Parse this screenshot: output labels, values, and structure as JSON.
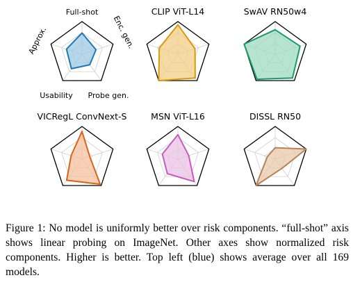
{
  "axis_labels": [
    "Full-shot",
    "Enc. gen.",
    "Probe gen.",
    "Usability",
    "Approx."
  ],
  "chart_data": [
    {
      "type": "radar",
      "title": "",
      "axes": [
        "Full-shot",
        "Enc. gen.",
        "Probe gen.",
        "Usability",
        "Approx."
      ],
      "values": [
        0.65,
        0.45,
        0.4,
        0.55,
        0.5
      ],
      "color": "#1f77b4",
      "fill": "#9ecae1",
      "grid": true
    },
    {
      "type": "radar",
      "title": "CLIP ViT-L14",
      "axes": [
        "Full-shot",
        "Enc. gen.",
        "Probe gen.",
        "Usability",
        "Approx."
      ],
      "values": [
        0.9,
        0.55,
        0.9,
        1.0,
        0.6
      ],
      "color": "#d89a0e",
      "fill": "#f3cd86",
      "grid": true
    },
    {
      "type": "radar",
      "title": "SwAV RN50w4",
      "axes": [
        "Full-shot",
        "Enc. gen.",
        "Probe gen.",
        "Usability",
        "Approx."
      ],
      "values": [
        0.75,
        0.8,
        0.9,
        0.95,
        1.0
      ],
      "color": "#1a9a6b",
      "fill": "#9fdbc2",
      "grid": true
    },
    {
      "type": "radar",
      "title": "VICRegL ConvNext-S",
      "axes": [
        "Full-shot",
        "Enc. gen.",
        "Probe gen.",
        "Usability",
        "Approx."
      ],
      "values": [
        0.85,
        0.25,
        0.95,
        0.8,
        0.35
      ],
      "color": "#d8641b",
      "fill": "#f4c09c",
      "grid": true
    },
    {
      "type": "radar",
      "title": "MSN ViT-L16",
      "axes": [
        "Full-shot",
        "Enc. gen.",
        "Probe gen.",
        "Usability",
        "Approx."
      ],
      "values": [
        0.75,
        0.35,
        0.85,
        0.55,
        0.5
      ],
      "color": "#c65bbd",
      "fill": "#ebc1e6",
      "grid": true
    },
    {
      "type": "radar",
      "title": "DISSL RN50",
      "axes": [
        "Full-shot",
        "Enc. gen.",
        "Probe gen.",
        "Usability",
        "Approx."
      ],
      "values": [
        0.35,
        1.0,
        0.35,
        1.0,
        0.25
      ],
      "color": "#b5835a",
      "fill": "#e9c8a8",
      "grid": true
    }
  ],
  "figure_caption": "Figure 1: No model is uniformly better over risk components. “full-shot” axis shows linear probing on ImageNet. Other axes show normalized risk components. Higher is better. Top left (blue) shows average over all 169 models."
}
